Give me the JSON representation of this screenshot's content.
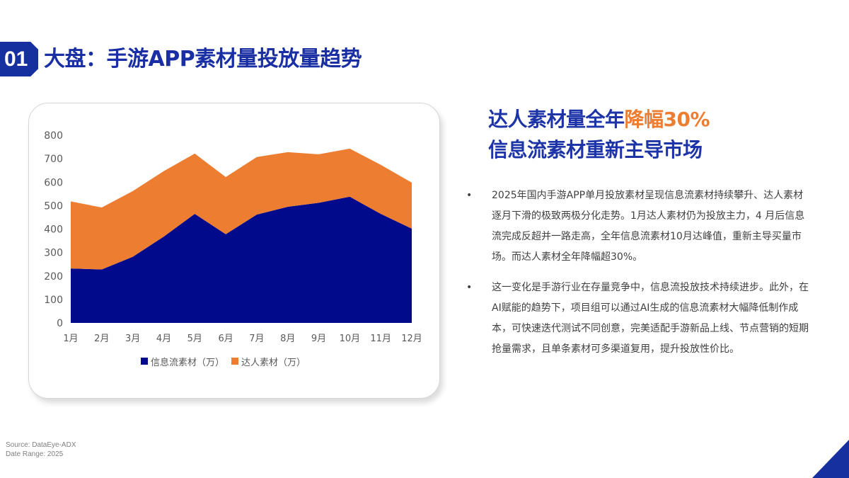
{
  "header": {
    "badge": "01",
    "title": "大盘：手游APP素材量投放量趋势"
  },
  "headline": {
    "line1_prefix": "达人素材量全年",
    "line1_accent": "降幅30%",
    "line2": "信息流素材重新主导市场"
  },
  "bullets": [
    {
      "marker": "•",
      "text": "2025年国内手游APP单月投放素材呈现信息流素材持续攀升、达人素材逐月下滑的极致两极分化走势。1月达人素材仍为投放主力，4 月后信息流完成反超并一路走高，全年信息流素材10月达峰值，重新主导买量市场。而达人素材全年降幅超30%。"
    },
    {
      "marker": "•",
      "text": "这一变化是手游行业在存量竞争中，信息流投放技术持续进步。此外，在AI赋能的趋势下，项目组可以通过AI生成的信息流素材大幅降低制作成本，可快速迭代测试不同创意，完美适配手游新品上线、节点营销的短期抢量需求，且单条素材可多渠道复用，提升投放性价比。"
    }
  ],
  "footer": {
    "source": "Source: DataEye-ADX",
    "date_range": "Date Range:  2025"
  },
  "colors": {
    "brand_blue": "#16309f",
    "title_blue": "#1d33a8",
    "series_blue": "#000a8a",
    "series_orange": "#ed7d31"
  },
  "chart_data": {
    "type": "area",
    "stacked": true,
    "title": "",
    "xlabel": "",
    "ylabel": "",
    "categories": [
      "1月",
      "2月",
      "3月",
      "4月",
      "5月",
      "6月",
      "7月",
      "8月",
      "9月",
      "10月",
      "11月",
      "12月"
    ],
    "series": [
      {
        "name": "信息流素材（万）",
        "color": "#000a8a",
        "values": [
          232,
          228,
          282,
          368,
          465,
          378,
          462,
          495,
          512,
          538,
          465,
          402
        ]
      },
      {
        "name": "达人素材（万）",
        "color": "#ed7d31",
        "values": [
          286,
          264,
          280,
          279,
          257,
          244,
          245,
          233,
          207,
          205,
          209,
          196
        ]
      }
    ],
    "stacked_totals": [
      518,
      492,
      562,
      647,
      722,
      622,
      707,
      728,
      719,
      743,
      674,
      598
    ],
    "ylim": [
      0,
      800
    ],
    "yticks": [
      0,
      100,
      200,
      300,
      400,
      500,
      600,
      700,
      800
    ],
    "grid": false,
    "legend_position": "bottom"
  }
}
